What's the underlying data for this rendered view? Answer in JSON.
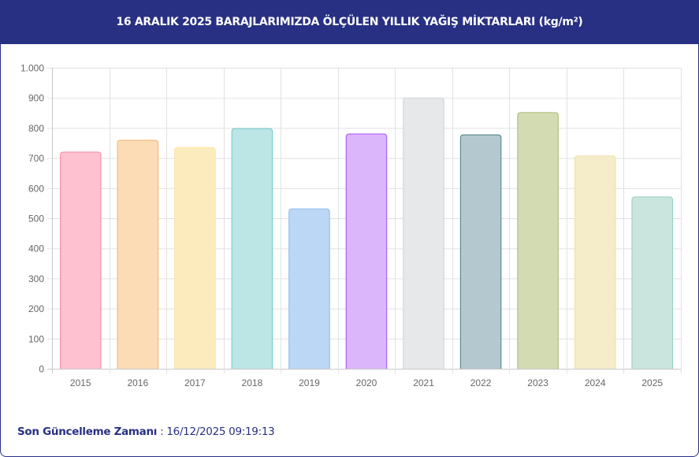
{
  "header": {
    "title": "16 ARALIK 2025 BARAJLARIMIZDA ÖLÇÜLEN YILLIK YAĞIŞ MİKTARLARI (kg/m²)"
  },
  "footer": {
    "label": "Son Güncelleme Zamanı",
    "separator": " : ",
    "value": "16/12/2025 09:19:13"
  },
  "colors": {
    "header_bg": "#283084",
    "footer_text": "#283084",
    "grid": "#e1e1e1",
    "tick_text": "#666666"
  },
  "chart_data": {
    "type": "bar",
    "title": "16 ARALIK 2025 BARAJLARIMIZDA ÖLÇÜLEN YILLIK YAĞIŞ MİKTARLARI (kg/m²)",
    "xlabel": "",
    "ylabel": "",
    "categories": [
      "2015",
      "2016",
      "2017",
      "2018",
      "2019",
      "2020",
      "2021",
      "2022",
      "2023",
      "2024",
      "2025"
    ],
    "values": [
      720,
      759,
      735,
      798,
      531,
      780,
      900,
      777,
      851,
      707,
      571
    ],
    "ylim": [
      0,
      1000
    ],
    "yticks": [
      0,
      100,
      200,
      300,
      400,
      500,
      600,
      700,
      800,
      900,
      1000
    ],
    "ytick_labels": [
      "0",
      "100",
      "200",
      "300",
      "400",
      "500",
      "600",
      "700",
      "800",
      "900",
      "1.000"
    ],
    "grid": true,
    "legend": "none",
    "bar_fill_colors": [
      "#fdc1cf",
      "#fcdcb5",
      "#fcecbd",
      "#bce5e6",
      "#bcd6f6",
      "#dcb6fb",
      "#e7e8ea",
      "#b4c9cf",
      "#d3dbb3",
      "#f5ecca",
      "#cae5de"
    ],
    "bar_border_colors": [
      "#f48aa5",
      "#f5b26b",
      "#fbe3a0",
      "#72c6c8",
      "#8ab8ee",
      "#a451f2",
      "#cfd1d4",
      "#4b7f88",
      "#a9ba72",
      "#efdfa1",
      "#94cfbd"
    ]
  }
}
